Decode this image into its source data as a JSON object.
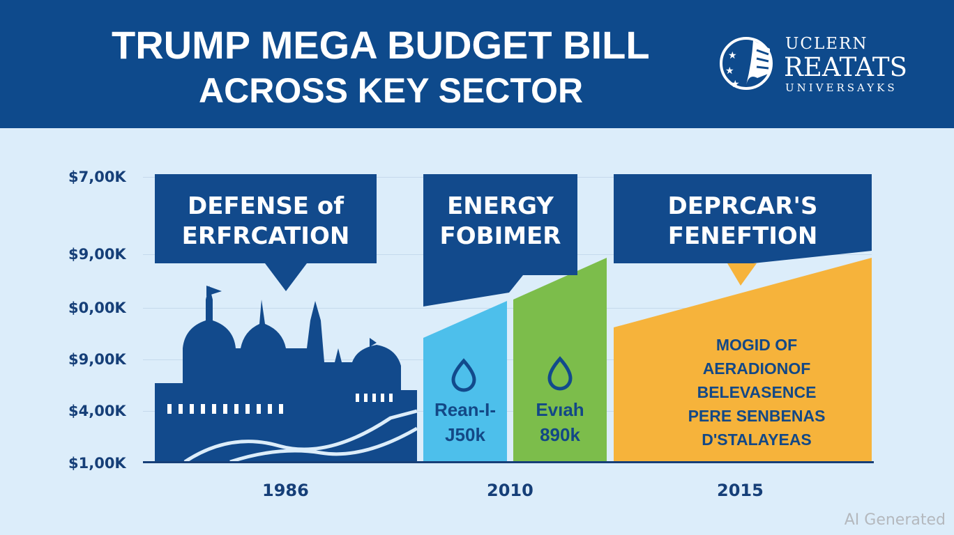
{
  "header": {
    "title_line1": "TRUMP MEGA BUDGET BILL",
    "title_line2": "ACROSS KEY SECTOR"
  },
  "logo": {
    "line1": "UCLERN",
    "line2": "REATATS",
    "line3": "UNIVERSAYKS"
  },
  "y_axis": [
    "$7,00K",
    "$9,00K",
    "$0,00K",
    "$9,00K",
    "$4,00K",
    "$1,00K"
  ],
  "callouts": [
    {
      "line1": "DEFENSE of",
      "line2": "ERFRCATION"
    },
    {
      "line1": "ENERGY",
      "line2": "FOBIMER"
    },
    {
      "line1": "DEPRCAR'S",
      "line2": "FENEFTION"
    }
  ],
  "bars": [
    {
      "label": "Rean-I-",
      "value": "J50k",
      "color": "#4dbfeb"
    },
    {
      "label": "Evıah",
      "value": "890k",
      "color": "#7cbd4b"
    },
    {
      "lines": [
        "MOGID OF",
        "AERADIONOF",
        "BELEVASENCE",
        "PERE SENBENAS",
        "D'STALAYEAS"
      ],
      "color": "#f6b33b"
    }
  ],
  "years": [
    "1986",
    "2010",
    "2015"
  ],
  "watermark": "AI Generated",
  "colors": {
    "navy": "#124a8c",
    "header": "#0e4a8c",
    "background": "#dcedfa"
  }
}
